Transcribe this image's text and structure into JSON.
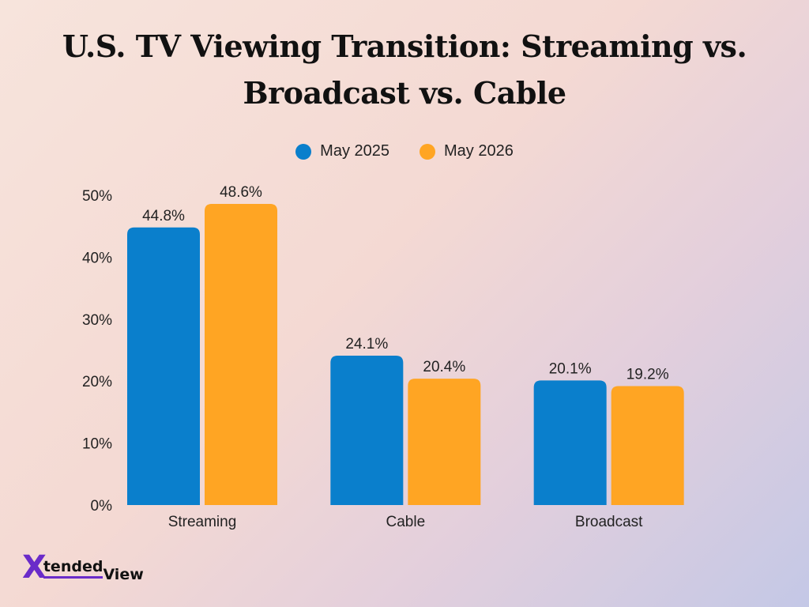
{
  "chart_data": {
    "type": "bar",
    "title": "U.S. TV Viewing Transition: Streaming vs. Broadcast vs. Cable",
    "categories": [
      "Streaming",
      "Cable",
      "Broadcast"
    ],
    "series": [
      {
        "name": "May 2025",
        "values": [
          44.8,
          24.1,
          20.1
        ],
        "labels": [
          "44.8%",
          "24.1%",
          "20.1%"
        ],
        "color": "#0a7fcc"
      },
      {
        "name": "May 2026",
        "values": [
          48.6,
          20.4,
          19.2
        ],
        "labels": [
          "48.6%",
          "20.4%",
          "19.2%"
        ],
        "color": "#ffa523"
      }
    ],
    "ylim": [
      0,
      50
    ],
    "yticks": [
      0,
      10,
      20,
      30,
      40,
      50
    ],
    "ytick_labels": [
      "0%",
      "10%",
      "20%",
      "30%",
      "40%",
      "50%"
    ],
    "xlabel": "",
    "ylabel": "",
    "grid": false,
    "legend": "top-center"
  },
  "logo": {
    "mark": "X",
    "word1": "tended",
    "word2": "View",
    "color": "#6a2bc9"
  }
}
